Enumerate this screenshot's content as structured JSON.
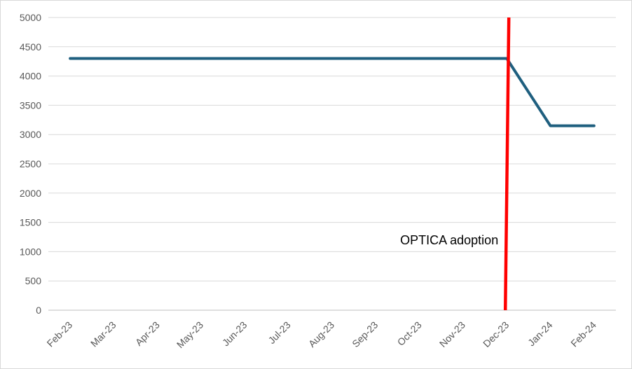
{
  "chart_data": {
    "type": "line",
    "categories": [
      "Feb-23",
      "Mar-23",
      "Apr-23",
      "May-23",
      "Jun-23",
      "Jul-23",
      "Aug-23",
      "Sep-23",
      "Oct-23",
      "Nov-23",
      "Dec-23",
      "Jan-24",
      "Feb-24"
    ],
    "series": [
      {
        "values": [
          4300,
          4300,
          4300,
          4300,
          4300,
          4300,
          4300,
          4300,
          4300,
          4300,
          4300,
          3150,
          3150
        ],
        "color": "#1f5f7f"
      }
    ],
    "ylim": [
      0,
      5000
    ],
    "yticks": [
      0,
      500,
      1000,
      1500,
      2000,
      2500,
      3000,
      3500,
      4000,
      4500,
      5000
    ],
    "grid": true,
    "annotation": {
      "text": "OPTICA adoption",
      "at_category": "Dec-23",
      "color": "#ff0000"
    },
    "title": "",
    "xlabel": "",
    "ylabel": ""
  }
}
